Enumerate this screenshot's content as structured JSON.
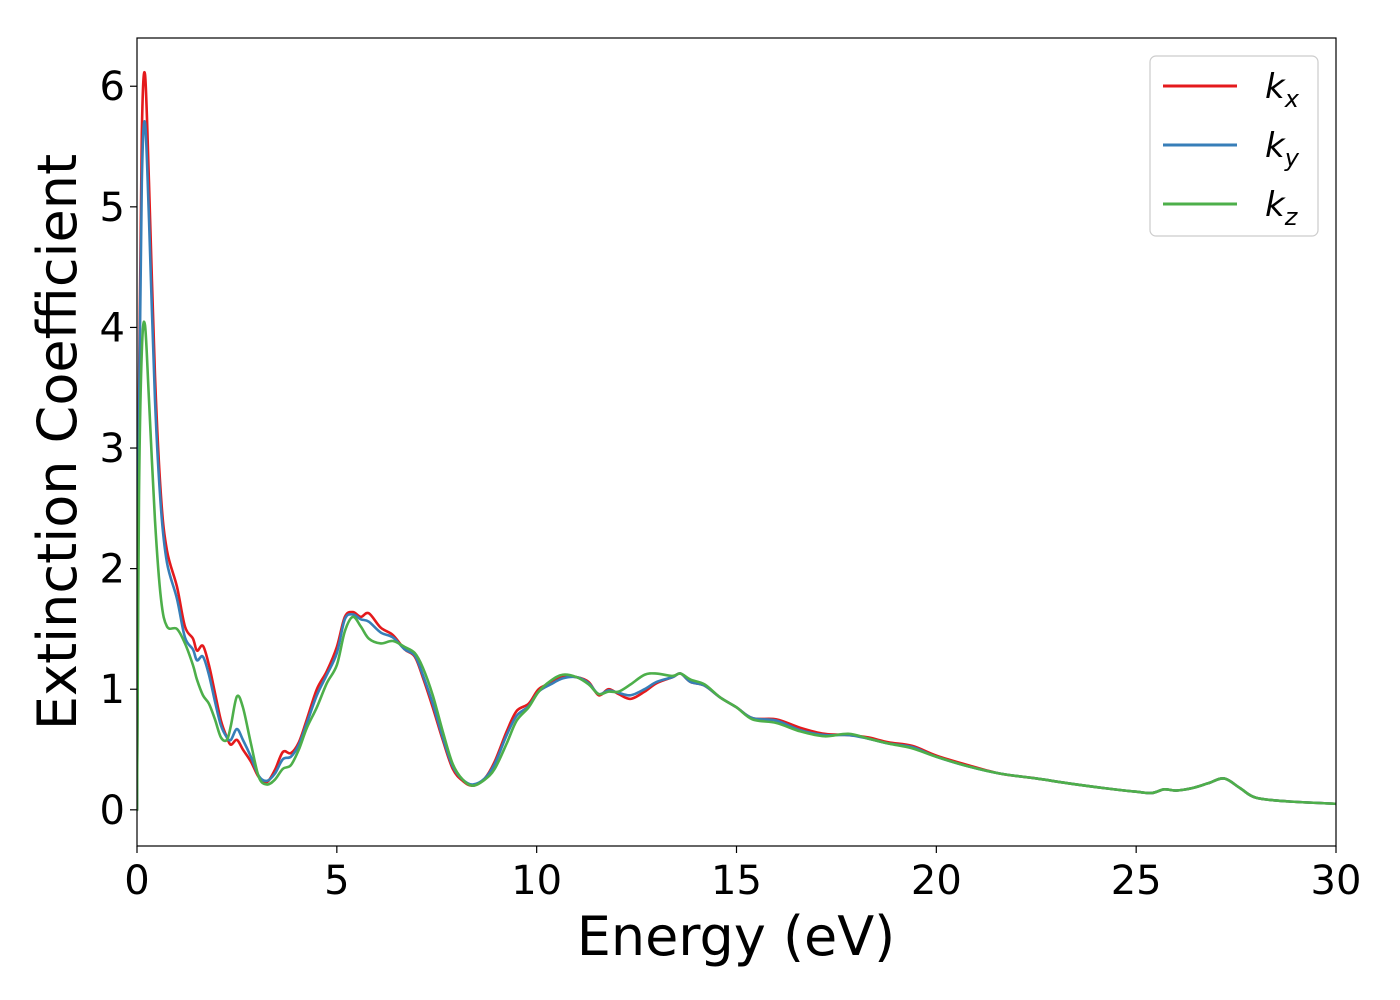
{
  "chart_data": {
    "type": "line",
    "xlabel": "Energy (eV)",
    "ylabel": "Extinction Coefficient",
    "xlim": [
      0,
      30
    ],
    "ylim": [
      -0.3,
      6.4
    ],
    "xticks": [
      0,
      5,
      10,
      15,
      20,
      25,
      30
    ],
    "yticks": [
      0,
      1,
      2,
      3,
      4,
      5,
      6
    ],
    "grid": false,
    "legend_position": "top-right",
    "series": [
      {
        "name": "k",
        "subscript": "x",
        "color": "#e41a1c",
        "points": [
          [
            0,
            0
          ],
          [
            0.05,
            3.5
          ],
          [
            0.12,
            5.6
          ],
          [
            0.2,
            6.1
          ],
          [
            0.3,
            5.2
          ],
          [
            0.45,
            3.6
          ],
          [
            0.6,
            2.6
          ],
          [
            0.75,
            2.15
          ],
          [
            1.0,
            1.85
          ],
          [
            1.2,
            1.52
          ],
          [
            1.4,
            1.42
          ],
          [
            1.5,
            1.32
          ],
          [
            1.65,
            1.36
          ],
          [
            1.8,
            1.2
          ],
          [
            1.95,
            0.97
          ],
          [
            2.1,
            0.74
          ],
          [
            2.25,
            0.6
          ],
          [
            2.35,
            0.54
          ],
          [
            2.5,
            0.58
          ],
          [
            2.65,
            0.5
          ],
          [
            2.85,
            0.4
          ],
          [
            3.05,
            0.27
          ],
          [
            3.25,
            0.23
          ],
          [
            3.45,
            0.33
          ],
          [
            3.65,
            0.48
          ],
          [
            3.85,
            0.47
          ],
          [
            4.05,
            0.56
          ],
          [
            4.25,
            0.75
          ],
          [
            4.5,
            1.0
          ],
          [
            4.75,
            1.15
          ],
          [
            5.0,
            1.35
          ],
          [
            5.2,
            1.6
          ],
          [
            5.4,
            1.64
          ],
          [
            5.6,
            1.6
          ],
          [
            5.8,
            1.63
          ],
          [
            6.1,
            1.51
          ],
          [
            6.4,
            1.45
          ],
          [
            6.7,
            1.33
          ],
          [
            6.95,
            1.27
          ],
          [
            7.15,
            1.1
          ],
          [
            7.4,
            0.85
          ],
          [
            7.65,
            0.58
          ],
          [
            7.9,
            0.34
          ],
          [
            8.15,
            0.24
          ],
          [
            8.4,
            0.2
          ],
          [
            8.7,
            0.26
          ],
          [
            8.95,
            0.4
          ],
          [
            9.25,
            0.65
          ],
          [
            9.5,
            0.82
          ],
          [
            9.8,
            0.88
          ],
          [
            10.05,
            1.0
          ],
          [
            10.35,
            1.05
          ],
          [
            10.65,
            1.1
          ],
          [
            11.0,
            1.1
          ],
          [
            11.3,
            1.06
          ],
          [
            11.55,
            0.95
          ],
          [
            11.8,
            1.0
          ],
          [
            12.05,
            0.96
          ],
          [
            12.35,
            0.92
          ],
          [
            12.7,
            0.98
          ],
          [
            13.0,
            1.05
          ],
          [
            13.4,
            1.1
          ],
          [
            13.6,
            1.13
          ],
          [
            13.85,
            1.06
          ],
          [
            14.2,
            1.03
          ],
          [
            14.6,
            0.93
          ],
          [
            15.0,
            0.85
          ],
          [
            15.4,
            0.76
          ],
          [
            16.0,
            0.75
          ],
          [
            16.6,
            0.68
          ],
          [
            17.2,
            0.63
          ],
          [
            17.8,
            0.62
          ],
          [
            18.3,
            0.6
          ],
          [
            18.8,
            0.56
          ],
          [
            19.4,
            0.53
          ],
          [
            20.0,
            0.45
          ],
          [
            20.8,
            0.37
          ],
          [
            21.6,
            0.3
          ],
          [
            22.5,
            0.26
          ],
          [
            23.3,
            0.22
          ],
          [
            24.2,
            0.18
          ],
          [
            25.0,
            0.15
          ],
          [
            25.4,
            0.14
          ],
          [
            25.7,
            0.17
          ],
          [
            26.0,
            0.16
          ],
          [
            26.4,
            0.18
          ],
          [
            26.8,
            0.22
          ],
          [
            27.2,
            0.26
          ],
          [
            27.6,
            0.18
          ],
          [
            28.0,
            0.1
          ],
          [
            28.8,
            0.07
          ],
          [
            30.0,
            0.05
          ]
        ]
      },
      {
        "name": "k",
        "subscript": "y",
        "color": "#377eb8",
        "points": [
          [
            0,
            0
          ],
          [
            0.05,
            3.3
          ],
          [
            0.12,
            5.2
          ],
          [
            0.2,
            5.7
          ],
          [
            0.3,
            4.9
          ],
          [
            0.45,
            3.4
          ],
          [
            0.6,
            2.5
          ],
          [
            0.75,
            2.05
          ],
          [
            1.0,
            1.75
          ],
          [
            1.2,
            1.43
          ],
          [
            1.4,
            1.33
          ],
          [
            1.5,
            1.24
          ],
          [
            1.65,
            1.27
          ],
          [
            1.8,
            1.12
          ],
          [
            1.95,
            0.9
          ],
          [
            2.1,
            0.7
          ],
          [
            2.25,
            0.6
          ],
          [
            2.35,
            0.58
          ],
          [
            2.5,
            0.67
          ],
          [
            2.65,
            0.58
          ],
          [
            2.85,
            0.44
          ],
          [
            3.05,
            0.28
          ],
          [
            3.25,
            0.24
          ],
          [
            3.45,
            0.3
          ],
          [
            3.65,
            0.42
          ],
          [
            3.85,
            0.44
          ],
          [
            4.05,
            0.54
          ],
          [
            4.25,
            0.72
          ],
          [
            4.5,
            0.95
          ],
          [
            4.75,
            1.12
          ],
          [
            5.0,
            1.3
          ],
          [
            5.2,
            1.58
          ],
          [
            5.4,
            1.62
          ],
          [
            5.6,
            1.58
          ],
          [
            5.8,
            1.56
          ],
          [
            6.1,
            1.47
          ],
          [
            6.4,
            1.43
          ],
          [
            6.7,
            1.33
          ],
          [
            6.95,
            1.28
          ],
          [
            7.15,
            1.12
          ],
          [
            7.4,
            0.88
          ],
          [
            7.65,
            0.6
          ],
          [
            7.9,
            0.36
          ],
          [
            8.15,
            0.25
          ],
          [
            8.4,
            0.21
          ],
          [
            8.7,
            0.26
          ],
          [
            8.95,
            0.38
          ],
          [
            9.25,
            0.62
          ],
          [
            9.5,
            0.78
          ],
          [
            9.8,
            0.86
          ],
          [
            10.05,
            0.98
          ],
          [
            10.35,
            1.04
          ],
          [
            10.65,
            1.09
          ],
          [
            11.0,
            1.1
          ],
          [
            11.3,
            1.05
          ],
          [
            11.55,
            0.96
          ],
          [
            11.8,
            0.99
          ],
          [
            12.05,
            0.97
          ],
          [
            12.35,
            0.95
          ],
          [
            12.7,
            1.0
          ],
          [
            13.0,
            1.06
          ],
          [
            13.4,
            1.1
          ],
          [
            13.6,
            1.13
          ],
          [
            13.85,
            1.06
          ],
          [
            14.2,
            1.03
          ],
          [
            14.6,
            0.93
          ],
          [
            15.0,
            0.85
          ],
          [
            15.4,
            0.76
          ],
          [
            16.0,
            0.74
          ],
          [
            16.6,
            0.66
          ],
          [
            17.2,
            0.62
          ],
          [
            17.8,
            0.62
          ],
          [
            18.3,
            0.59
          ],
          [
            18.8,
            0.55
          ],
          [
            19.4,
            0.52
          ],
          [
            20.0,
            0.44
          ],
          [
            20.8,
            0.36
          ],
          [
            21.6,
            0.3
          ],
          [
            22.5,
            0.26
          ],
          [
            23.3,
            0.22
          ],
          [
            24.2,
            0.18
          ],
          [
            25.0,
            0.15
          ],
          [
            25.4,
            0.14
          ],
          [
            25.7,
            0.17
          ],
          [
            26.0,
            0.16
          ],
          [
            26.4,
            0.18
          ],
          [
            26.8,
            0.22
          ],
          [
            27.2,
            0.26
          ],
          [
            27.6,
            0.18
          ],
          [
            28.0,
            0.1
          ],
          [
            28.8,
            0.07
          ],
          [
            30.0,
            0.05
          ]
        ]
      },
      {
        "name": "k",
        "subscript": "z",
        "color": "#4daf4a",
        "points": [
          [
            0,
            0
          ],
          [
            0.05,
            2.6
          ],
          [
            0.12,
            3.8
          ],
          [
            0.2,
            4.02
          ],
          [
            0.3,
            3.4
          ],
          [
            0.45,
            2.4
          ],
          [
            0.6,
            1.75
          ],
          [
            0.75,
            1.52
          ],
          [
            1.0,
            1.5
          ],
          [
            1.2,
            1.38
          ],
          [
            1.4,
            1.2
          ],
          [
            1.5,
            1.08
          ],
          [
            1.65,
            0.95
          ],
          [
            1.8,
            0.88
          ],
          [
            1.95,
            0.75
          ],
          [
            2.1,
            0.6
          ],
          [
            2.25,
            0.58
          ],
          [
            2.35,
            0.7
          ],
          [
            2.5,
            0.94
          ],
          [
            2.65,
            0.85
          ],
          [
            2.85,
            0.55
          ],
          [
            3.05,
            0.27
          ],
          [
            3.25,
            0.21
          ],
          [
            3.45,
            0.25
          ],
          [
            3.65,
            0.34
          ],
          [
            3.85,
            0.37
          ],
          [
            4.05,
            0.5
          ],
          [
            4.25,
            0.68
          ],
          [
            4.5,
            0.85
          ],
          [
            4.75,
            1.05
          ],
          [
            5.0,
            1.2
          ],
          [
            5.2,
            1.48
          ],
          [
            5.4,
            1.6
          ],
          [
            5.6,
            1.52
          ],
          [
            5.8,
            1.42
          ],
          [
            6.1,
            1.38
          ],
          [
            6.4,
            1.4
          ],
          [
            6.7,
            1.35
          ],
          [
            6.95,
            1.3
          ],
          [
            7.15,
            1.18
          ],
          [
            7.4,
            0.95
          ],
          [
            7.65,
            0.65
          ],
          [
            7.9,
            0.38
          ],
          [
            8.15,
            0.25
          ],
          [
            8.4,
            0.2
          ],
          [
            8.7,
            0.25
          ],
          [
            8.95,
            0.34
          ],
          [
            9.25,
            0.55
          ],
          [
            9.5,
            0.74
          ],
          [
            9.8,
            0.85
          ],
          [
            10.05,
            0.98
          ],
          [
            10.35,
            1.07
          ],
          [
            10.65,
            1.12
          ],
          [
            11.0,
            1.1
          ],
          [
            11.3,
            1.04
          ],
          [
            11.55,
            0.96
          ],
          [
            11.8,
            0.98
          ],
          [
            12.05,
            0.98
          ],
          [
            12.35,
            1.04
          ],
          [
            12.7,
            1.12
          ],
          [
            13.0,
            1.13
          ],
          [
            13.4,
            1.11
          ],
          [
            13.6,
            1.13
          ],
          [
            13.85,
            1.08
          ],
          [
            14.2,
            1.04
          ],
          [
            14.6,
            0.93
          ],
          [
            15.0,
            0.85
          ],
          [
            15.4,
            0.75
          ],
          [
            16.0,
            0.72
          ],
          [
            16.6,
            0.65
          ],
          [
            17.2,
            0.61
          ],
          [
            17.8,
            0.63
          ],
          [
            18.3,
            0.59
          ],
          [
            18.8,
            0.55
          ],
          [
            19.4,
            0.51
          ],
          [
            20.0,
            0.44
          ],
          [
            20.8,
            0.36
          ],
          [
            21.6,
            0.3
          ],
          [
            22.5,
            0.26
          ],
          [
            23.3,
            0.22
          ],
          [
            24.2,
            0.18
          ],
          [
            25.0,
            0.15
          ],
          [
            25.4,
            0.14
          ],
          [
            25.7,
            0.17
          ],
          [
            26.0,
            0.16
          ],
          [
            26.4,
            0.18
          ],
          [
            26.8,
            0.22
          ],
          [
            27.2,
            0.26
          ],
          [
            27.6,
            0.18
          ],
          [
            28.0,
            0.1
          ],
          [
            28.8,
            0.07
          ],
          [
            30.0,
            0.05
          ]
        ]
      }
    ]
  }
}
